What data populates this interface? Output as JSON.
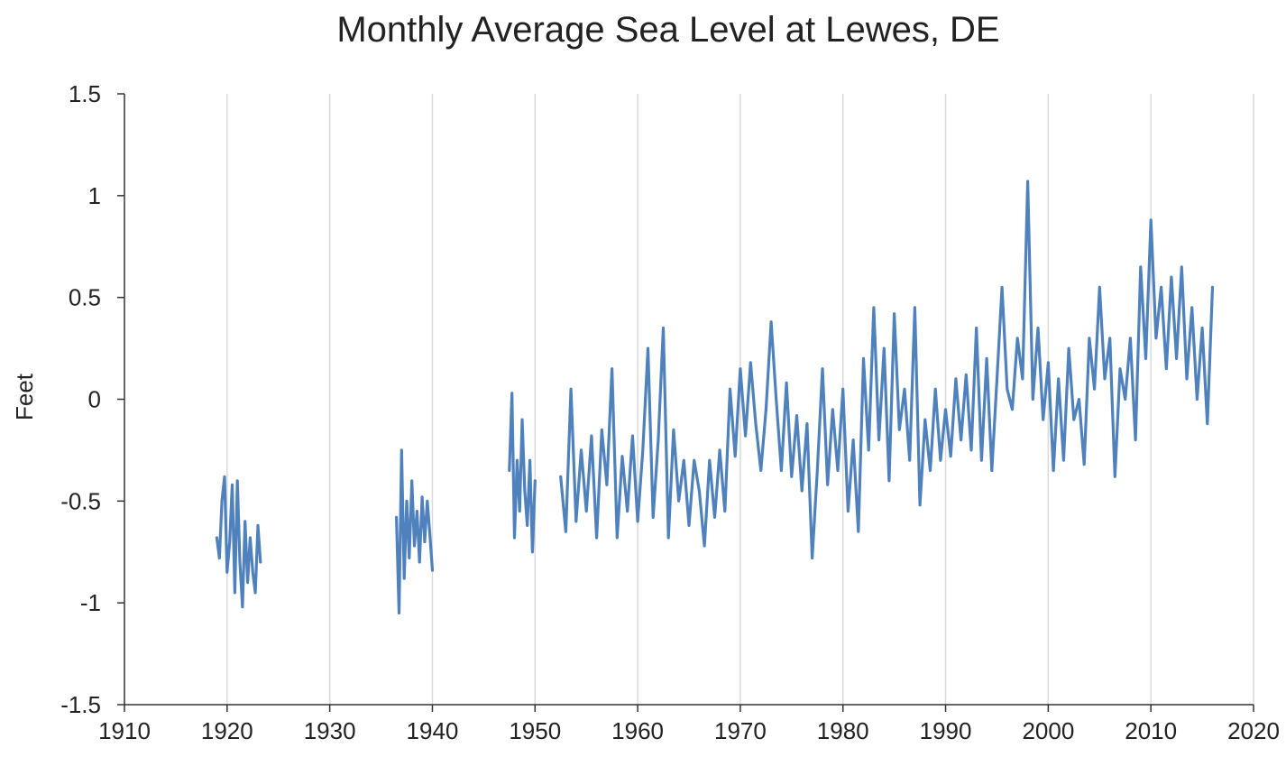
{
  "chart_data": {
    "type": "line",
    "title": "Monthly Average Sea Level at Lewes, DE",
    "xlabel": "",
    "ylabel": "Feet",
    "xlim": [
      1910,
      2020
    ],
    "ylim": [
      -1.5,
      1.5
    ],
    "x_ticks": [
      "1910",
      "1920",
      "1930",
      "1940",
      "1950",
      "1960",
      "1970",
      "1980",
      "1990",
      "2000",
      "2010",
      "2020"
    ],
    "y_ticks": [
      "1.5",
      "1",
      "0.5",
      "0",
      "-0.5",
      "-1",
      "-1.5"
    ],
    "grid": "vertical",
    "legend": "none",
    "line_color": "#4F81BD",
    "series": [
      {
        "segments": [
          {
            "x": [
              1919.0,
              1919.25,
              1919.5,
              1919.75,
              1920.0,
              1920.25,
              1920.5,
              1920.75,
              1921.0,
              1921.25,
              1921.5,
              1921.75,
              1922.0,
              1922.25,
              1922.5,
              1922.75,
              1923.0,
              1923.25
            ],
            "y": [
              -0.68,
              -0.78,
              -0.5,
              -0.38,
              -0.85,
              -0.7,
              -0.42,
              -0.95,
              -0.4,
              -0.8,
              -1.02,
              -0.6,
              -0.9,
              -0.68,
              -0.85,
              -0.95,
              -0.62,
              -0.8
            ]
          },
          {
            "x": [
              1936.5,
              1936.75,
              1937.0,
              1937.25,
              1937.5,
              1937.75,
              1938.0,
              1938.25,
              1938.5,
              1938.75,
              1939.0,
              1939.25,
              1939.5,
              1939.75,
              1940.0
            ],
            "y": [
              -0.58,
              -1.05,
              -0.25,
              -0.88,
              -0.5,
              -0.78,
              -0.4,
              -0.72,
              -0.55,
              -0.8,
              -0.48,
              -0.7,
              -0.5,
              -0.66,
              -0.84
            ]
          },
          {
            "x": [
              1947.5,
              1947.75,
              1948.0,
              1948.25,
              1948.5,
              1948.75,
              1949.0,
              1949.25,
              1949.5,
              1949.75,
              1950.0
            ],
            "y": [
              -0.35,
              0.03,
              -0.68,
              -0.3,
              -0.55,
              -0.1,
              -0.45,
              -0.62,
              -0.3,
              -0.75,
              -0.4
            ]
          },
          {
            "x": [
              1952.5,
              1953.0,
              1953.5,
              1954.0,
              1954.5,
              1955.0,
              1955.5,
              1956.0,
              1956.5,
              1957.0,
              1957.5,
              1958.0,
              1958.5,
              1959.0,
              1959.5,
              1960.0,
              1960.5,
              1961.0,
              1961.5,
              1962.0,
              1962.5,
              1963.0,
              1963.5,
              1964.0,
              1964.5,
              1965.0,
              1965.5,
              1966.0,
              1966.5,
              1967.0,
              1967.5,
              1968.0,
              1968.5,
              1969.0,
              1969.5,
              1970.0,
              1970.5,
              1971.0,
              1971.5,
              1972.0,
              1972.5,
              1973.0,
              1973.5,
              1974.0,
              1974.5,
              1975.0,
              1975.5,
              1976.0,
              1976.5,
              1977.0,
              1977.5,
              1978.0,
              1978.5,
              1979.0,
              1979.5,
              1980.0,
              1980.5,
              1981.0,
              1981.5,
              1982.0,
              1982.5,
              1983.0,
              1983.5,
              1984.0,
              1984.5,
              1985.0,
              1985.5,
              1986.0,
              1986.5,
              1987.0,
              1987.5,
              1988.0,
              1988.5,
              1989.0,
              1989.5,
              1990.0,
              1990.5,
              1991.0,
              1991.5,
              1992.0,
              1992.5,
              1993.0,
              1993.5,
              1994.0,
              1994.5,
              1995.0,
              1995.5,
              1996.0,
              1996.5,
              1997.0,
              1997.5,
              1998.0,
              1998.5,
              1999.0,
              1999.5,
              2000.0,
              2000.5,
              2001.0,
              2001.5,
              2002.0,
              2002.5,
              2003.0,
              2003.5,
              2004.0,
              2004.5,
              2005.0,
              2005.5,
              2006.0,
              2006.5,
              2007.0,
              2007.5,
              2008.0,
              2008.5,
              2009.0,
              2009.5,
              2010.0,
              2010.5,
              2011.0,
              2011.5,
              2012.0,
              2012.5,
              2013.0,
              2013.5,
              2014.0,
              2014.5,
              2015.0,
              2015.5,
              2016.0
            ],
            "y": [
              -0.38,
              -0.65,
              0.05,
              -0.6,
              -0.25,
              -0.55,
              -0.18,
              -0.68,
              -0.15,
              -0.42,
              0.15,
              -0.68,
              -0.28,
              -0.55,
              -0.18,
              -0.6,
              -0.25,
              0.25,
              -0.58,
              -0.2,
              0.35,
              -0.68,
              -0.15,
              -0.5,
              -0.3,
              -0.62,
              -0.3,
              -0.45,
              -0.72,
              -0.3,
              -0.58,
              -0.25,
              -0.55,
              0.05,
              -0.28,
              0.15,
              -0.18,
              0.18,
              -0.12,
              -0.35,
              -0.05,
              0.38,
              0.0,
              -0.35,
              0.08,
              -0.38,
              -0.08,
              -0.45,
              -0.12,
              -0.78,
              -0.35,
              0.15,
              -0.42,
              -0.05,
              -0.35,
              0.05,
              -0.55,
              -0.2,
              -0.65,
              0.2,
              -0.25,
              0.45,
              -0.2,
              0.25,
              -0.4,
              0.42,
              -0.15,
              0.05,
              -0.3,
              0.45,
              -0.52,
              -0.1,
              -0.35,
              0.05,
              -0.3,
              -0.05,
              -0.28,
              0.1,
              -0.2,
              0.12,
              -0.25,
              0.35,
              -0.3,
              0.2,
              -0.35,
              0.1,
              0.55,
              0.05,
              -0.05,
              0.3,
              0.1,
              1.07,
              0.0,
              0.35,
              -0.1,
              0.18,
              -0.35,
              0.1,
              -0.3,
              0.25,
              -0.1,
              0.0,
              -0.32,
              0.3,
              0.05,
              0.55,
              0.1,
              0.3,
              -0.38,
              0.15,
              0.0,
              0.3,
              -0.2,
              0.65,
              0.2,
              0.88,
              0.3,
              0.55,
              0.15,
              0.6,
              0.2,
              0.65,
              0.1,
              0.45,
              0.0,
              0.35,
              -0.12,
              0.55
            ]
          }
        ]
      }
    ]
  }
}
